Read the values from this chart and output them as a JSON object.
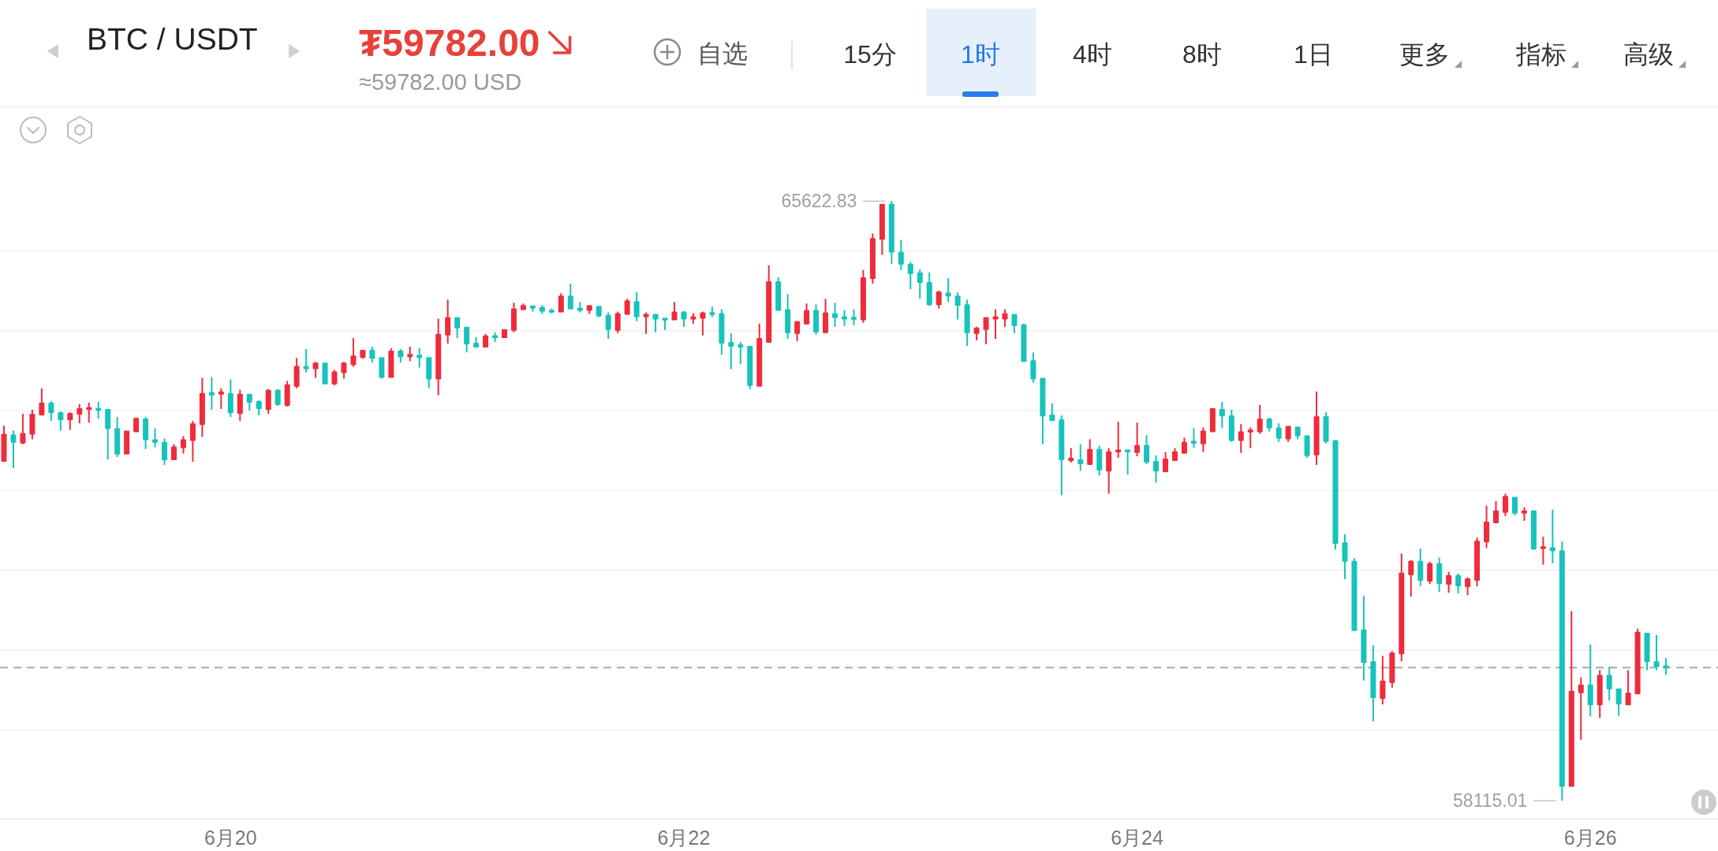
{
  "chart_data": {
    "type": "candlestick",
    "title": "BTC / USDT",
    "categories": [
      null,
      null,
      null,
      null,
      null,
      null,
      null,
      null,
      null,
      null,
      null,
      null,
      null,
      null,
      null,
      null,
      null,
      null,
      null,
      null,
      null,
      null,
      null,
      null,
      "6月20",
      null,
      null,
      null,
      null,
      null,
      null,
      null,
      null,
      null,
      null,
      null,
      null,
      null,
      null,
      null,
      null,
      null,
      null,
      null,
      null,
      null,
      null,
      null,
      null,
      null,
      null,
      null,
      null,
      null,
      null,
      null,
      null,
      null,
      null,
      null,
      null,
      null,
      null,
      null,
      null,
      null,
      null,
      null,
      null,
      null,
      null,
      null,
      "6月22",
      null,
      null,
      null,
      null,
      null,
      null,
      null,
      null,
      null,
      null,
      null,
      null,
      null,
      null,
      null,
      null,
      null,
      null,
      null,
      null,
      null,
      null,
      null,
      null,
      null,
      null,
      null,
      null,
      null,
      null,
      null,
      null,
      null,
      null,
      null,
      null,
      null,
      null,
      null,
      null,
      null,
      null,
      null,
      null,
      null,
      null,
      null,
      "6月24",
      null,
      null,
      null,
      null,
      null,
      null,
      null,
      null,
      null,
      null,
      null,
      null,
      null,
      null,
      null,
      null,
      null,
      null,
      null,
      null,
      null,
      null,
      null,
      null,
      null,
      null,
      null,
      null,
      null,
      null,
      null,
      null,
      null,
      null,
      null,
      null,
      null,
      null,
      null,
      null,
      null,
      null,
      null,
      null,
      null,
      null,
      null,
      "6月26",
      null,
      null,
      null,
      null,
      null,
      null,
      null,
      null
    ],
    "ohlc": [
      [
        62370,
        62810,
        62360,
        62700
      ],
      [
        62690,
        62750,
        62280,
        62610
      ],
      [
        62600,
        62960,
        62580,
        62710
      ],
      [
        62710,
        63010,
        62640,
        62950
      ],
      [
        62950,
        63280,
        62940,
        63090
      ],
      [
        63090,
        63120,
        62870,
        62980
      ],
      [
        62970,
        62990,
        62750,
        62890
      ],
      [
        62890,
        62980,
        62760,
        62960
      ],
      [
        62960,
        63080,
        62840,
        63020
      ],
      [
        63020,
        63100,
        62850,
        63030
      ],
      [
        63020,
        63110,
        62900,
        63010
      ],
      [
        63010,
        63020,
        62390,
        62780
      ],
      [
        62770,
        62920,
        62420,
        62460
      ],
      [
        62460,
        62750,
        62450,
        62740
      ],
      [
        62740,
        62910,
        62730,
        62900
      ],
      [
        62890,
        62920,
        62520,
        62640
      ],
      [
        62630,
        62780,
        62540,
        62610
      ],
      [
        62600,
        62650,
        62320,
        62390
      ],
      [
        62390,
        62580,
        62380,
        62540
      ],
      [
        62540,
        62680,
        62460,
        62630
      ],
      [
        62630,
        62870,
        62360,
        62830
      ],
      [
        62830,
        63410,
        62670,
        63210
      ],
      [
        63220,
        63420,
        63010,
        63200
      ],
      [
        63210,
        63280,
        63020,
        63230
      ],
      [
        63210,
        63390,
        62920,
        62980
      ],
      [
        62970,
        63260,
        62870,
        63200
      ],
      [
        63200,
        63210,
        63000,
        63110
      ],
      [
        63110,
        63130,
        62940,
        63030
      ],
      [
        63020,
        63270,
        62960,
        63250
      ],
      [
        63250,
        63270,
        63060,
        63080
      ],
      [
        63070,
        63370,
        63050,
        63320
      ],
      [
        63310,
        63660,
        63280,
        63550
      ],
      [
        63550,
        63770,
        63480,
        63530
      ],
      [
        63530,
        63610,
        63410,
        63590
      ],
      [
        63590,
        63590,
        63340,
        63340
      ],
      [
        63340,
        63510,
        63320,
        63480
      ],
      [
        63480,
        63610,
        63400,
        63590
      ],
      [
        63580,
        63910,
        63550,
        63680
      ],
      [
        63670,
        63760,
        63650,
        63750
      ],
      [
        63750,
        63800,
        63600,
        63660
      ],
      [
        63660,
        63670,
        63400,
        63420
      ],
      [
        63420,
        63780,
        63410,
        63740
      ],
      [
        63740,
        63770,
        63600,
        63680
      ],
      [
        63680,
        63800,
        63620,
        63700
      ],
      [
        63690,
        63780,
        63540,
        63670
      ],
      [
        63660,
        63660,
        63280,
        63400
      ],
      [
        63400,
        64150,
        63190,
        63950
      ],
      [
        63950,
        64390,
        63840,
        64160
      ],
      [
        64160,
        64170,
        63910,
        64040
      ],
      [
        64040,
        64040,
        63730,
        63840
      ],
      [
        63840,
        63920,
        63790,
        63800
      ],
      [
        63800,
        63960,
        63790,
        63930
      ],
      [
        63930,
        63980,
        63860,
        63920
      ],
      [
        63920,
        64020,
        63920,
        64010
      ],
      [
        64010,
        64350,
        63980,
        64270
      ],
      [
        64270,
        64340,
        64260,
        64310
      ],
      [
        64300,
        64320,
        64240,
        64290
      ],
      [
        64290,
        64320,
        64210,
        64250
      ],
      [
        64250,
        64280,
        64220,
        64240
      ],
      [
        64240,
        64470,
        64240,
        64430
      ],
      [
        64430,
        64590,
        64270,
        64280
      ],
      [
        64280,
        64360,
        64230,
        64260
      ],
      [
        64260,
        64320,
        64210,
        64310
      ],
      [
        64300,
        64300,
        64170,
        64190
      ],
      [
        64190,
        64230,
        63900,
        64020
      ],
      [
        64010,
        64240,
        63970,
        64210
      ],
      [
        64210,
        64400,
        64200,
        64370
      ],
      [
        64360,
        64480,
        64120,
        64180
      ],
      [
        64180,
        64230,
        63960,
        64200
      ],
      [
        64200,
        64200,
        63980,
        64150
      ],
      [
        64150,
        64160,
        64010,
        64140
      ],
      [
        64140,
        64360,
        64130,
        64230
      ],
      [
        64230,
        64250,
        64050,
        64150
      ],
      [
        64150,
        64220,
        64090,
        64170
      ],
      [
        64160,
        64240,
        63940,
        64220
      ],
      [
        64220,
        64300,
        64170,
        64210
      ],
      [
        64210,
        64270,
        63700,
        63850
      ],
      [
        63850,
        63970,
        63520,
        63810
      ],
      [
        63820,
        63860,
        63580,
        63800
      ],
      [
        63800,
        63800,
        63270,
        63320
      ],
      [
        63310,
        64090,
        63310,
        63900
      ],
      [
        63860,
        64820,
        63860,
        64610
      ],
      [
        64610,
        64670,
        64250,
        64260
      ],
      [
        64260,
        64460,
        63900,
        63980
      ],
      [
        63970,
        64110,
        63870,
        64110
      ],
      [
        64090,
        64340,
        64090,
        64250
      ],
      [
        64250,
        64330,
        63950,
        63990
      ],
      [
        63980,
        64400,
        63970,
        64220
      ],
      [
        64210,
        64350,
        64050,
        64170
      ],
      [
        64170,
        64260,
        64060,
        64150
      ],
      [
        64160,
        64270,
        64070,
        64150
      ],
      [
        64140,
        64760,
        64100,
        64660
      ],
      [
        64660,
        65220,
        64590,
        65150
      ],
      [
        65150,
        65590,
        64950,
        65580
      ],
      [
        65580,
        65622.83,
        64840,
        64990
      ],
      [
        64980,
        65140,
        64760,
        64840
      ],
      [
        64830,
        64860,
        64520,
        64720
      ],
      [
        64720,
        64770,
        64400,
        64610
      ],
      [
        64600,
        64730,
        64310,
        64330
      ],
      [
        64330,
        64500,
        64280,
        64480
      ],
      [
        64470,
        64660,
        64360,
        64440
      ],
      [
        64430,
        64480,
        64140,
        64320
      ],
      [
        64320,
        64390,
        63810,
        63980
      ],
      [
        63970,
        64050,
        63880,
        64030
      ],
      [
        64020,
        64170,
        63830,
        64160
      ],
      [
        64150,
        64270,
        63900,
        64170
      ],
      [
        64150,
        64270,
        64050,
        64210
      ],
      [
        64200,
        64210,
        63970,
        64070
      ],
      [
        64070,
        64090,
        63620,
        63620
      ],
      [
        63620,
        63730,
        63350,
        63400
      ],
      [
        63400,
        63400,
        62580,
        62940
      ],
      [
        62940,
        63090,
        62880,
        62880
      ],
      [
        62880,
        62940,
        61940,
        62390
      ],
      [
        62380,
        62530,
        62350,
        62400
      ],
      [
        62380,
        62580,
        62250,
        62340
      ],
      [
        62330,
        62640,
        62330,
        62510
      ],
      [
        62510,
        62560,
        62190,
        62260
      ],
      [
        62250,
        62530,
        61960,
        62480
      ],
      [
        62490,
        62860,
        62410,
        62500
      ],
      [
        62500,
        62510,
        62200,
        62490
      ],
      [
        62480,
        62850,
        62430,
        62560
      ],
      [
        62560,
        62690,
        62330,
        62360
      ],
      [
        62360,
        62440,
        62100,
        62250
      ],
      [
        62240,
        62480,
        62240,
        62390
      ],
      [
        62380,
        62530,
        62380,
        62480
      ],
      [
        62470,
        62660,
        62470,
        62600
      ],
      [
        62610,
        62780,
        62530,
        62600
      ],
      [
        62590,
        62790,
        62480,
        62740
      ],
      [
        62740,
        63020,
        62740,
        63020
      ],
      [
        63010,
        63110,
        62780,
        62940
      ],
      [
        62930,
        63010,
        62610,
        62630
      ],
      [
        62630,
        62830,
        62470,
        62730
      ],
      [
        62740,
        62790,
        62530,
        62750
      ],
      [
        62740,
        63070,
        62710,
        62890
      ],
      [
        62890,
        62910,
        62740,
        62790
      ],
      [
        62780,
        62840,
        62610,
        62660
      ],
      [
        62650,
        62800,
        62610,
        62800
      ],
      [
        62790,
        62800,
        62640,
        62690
      ],
      [
        62680,
        62690,
        62410,
        62440
      ],
      [
        62450,
        63240,
        62320,
        62920
      ],
      [
        62920,
        62980,
        62590,
        62620
      ],
      [
        62620,
        62630,
        61260,
        61340
      ],
      [
        61340,
        61450,
        60890,
        61120
      ],
      [
        61110,
        61150,
        60250,
        60250
      ],
      [
        60250,
        60680,
        59620,
        59850
      ],
      [
        59850,
        60060,
        59110,
        59410
      ],
      [
        59400,
        59930,
        59320,
        59610
      ],
      [
        59600,
        59990,
        59530,
        59960
      ],
      [
        59960,
        61210,
        59860,
        60960
      ],
      [
        60950,
        61130,
        60670,
        61110
      ],
      [
        61110,
        61270,
        60800,
        60880
      ],
      [
        60870,
        61110,
        60830,
        61080
      ],
      [
        61080,
        61160,
        60730,
        60840
      ],
      [
        60830,
        60980,
        60720,
        60930
      ],
      [
        60930,
        60960,
        60710,
        60810
      ],
      [
        60800,
        60910,
        60690,
        60890
      ],
      [
        60880,
        61410,
        60800,
        61360
      ],
      [
        61360,
        61810,
        61280,
        61600
      ],
      [
        61600,
        61870,
        61600,
        61740
      ],
      [
        61730,
        61960,
        61680,
        61920
      ],
      [
        61910,
        61920,
        61690,
        61720
      ],
      [
        61720,
        61790,
        61620,
        61740
      ],
      [
        61740,
        61750,
        61260,
        61270
      ],
      [
        61280,
        61420,
        61070,
        61290
      ],
      [
        61280,
        61760,
        61090,
        61250
      ],
      [
        61240,
        61360,
        58115.01,
        58300
      ],
      [
        58300,
        60490,
        58300,
        59480
      ],
      [
        59470,
        59660,
        58880,
        59560
      ],
      [
        59560,
        60070,
        59170,
        59320
      ],
      [
        59320,
        59750,
        59150,
        59680
      ],
      [
        59680,
        59790,
        59370,
        59520
      ],
      [
        59510,
        59510,
        59180,
        59330
      ],
      [
        59320,
        59750,
        59320,
        59460
      ],
      [
        59460,
        60270,
        59460,
        60220
      ],
      [
        60210,
        60210,
        59750,
        59860
      ],
      [
        59850,
        60190,
        59750,
        59800
      ],
      [
        59800,
        59900,
        59690,
        59782
      ]
    ],
    "colors": [
      "#ee2c3c",
      "#17c3bc",
      "#ee2c3c",
      "#ee2c3c",
      "#ee2c3c",
      "#17c3bc",
      "#17c3bc",
      "#ee2c3c",
      "#ee2c3c",
      "#ee2c3c",
      "#17c3bc",
      "#17c3bc",
      "#17c3bc",
      "#ee2c3c",
      "#ee2c3c",
      "#17c3bc",
      "#17c3bc",
      "#17c3bc",
      "#ee2c3c",
      "#ee2c3c",
      "#ee2c3c",
      "#ee2c3c",
      "#17c3bc",
      "#ee2c3c",
      "#17c3bc",
      "#ee2c3c",
      "#17c3bc",
      "#17c3bc",
      "#ee2c3c",
      "#17c3bc",
      "#ee2c3c",
      "#ee2c3c",
      "#17c3bc",
      "#ee2c3c",
      "#17c3bc",
      "#ee2c3c",
      "#ee2c3c",
      "#ee2c3c",
      "#ee2c3c",
      "#17c3bc",
      "#17c3bc",
      "#ee2c3c",
      "#17c3bc",
      "#ee2c3c",
      "#17c3bc",
      "#17c3bc",
      "#ee2c3c",
      "#ee2c3c",
      "#17c3bc",
      "#17c3bc",
      "#17c3bc",
      "#ee2c3c",
      "#17c3bc",
      "#ee2c3c",
      "#ee2c3c",
      "#ee2c3c",
      "#17c3bc",
      "#17c3bc",
      "#17c3bc",
      "#ee2c3c",
      "#17c3bc",
      "#17c3bc",
      "#ee2c3c",
      "#17c3bc",
      "#17c3bc",
      "#ee2c3c",
      "#ee2c3c",
      "#17c3bc",
      "#ee2c3c",
      "#17c3bc",
      "#17c3bc",
      "#ee2c3c",
      "#17c3bc",
      "#ee2c3c",
      "#ee2c3c",
      "#17c3bc",
      "#17c3bc",
      "#17c3bc",
      "#17c3bc",
      "#17c3bc",
      "#ee2c3c",
      "#ee2c3c",
      "#17c3bc",
      "#17c3bc",
      "#ee2c3c",
      "#ee2c3c",
      "#17c3bc",
      "#ee2c3c",
      "#17c3bc",
      "#17c3bc",
      "#17c3bc",
      "#ee2c3c",
      "#ee2c3c",
      "#ee2c3c",
      "#17c3bc",
      "#17c3bc",
      "#17c3bc",
      "#17c3bc",
      "#17c3bc",
      "#ee2c3c",
      "#17c3bc",
      "#17c3bc",
      "#17c3bc",
      "#ee2c3c",
      "#ee2c3c",
      "#ee2c3c",
      "#ee2c3c",
      "#17c3bc",
      "#17c3bc",
      "#17c3bc",
      "#17c3bc",
      "#17c3bc",
      "#17c3bc",
      "#ee2c3c",
      "#17c3bc",
      "#ee2c3c",
      "#17c3bc",
      "#ee2c3c",
      "#ee2c3c",
      "#17c3bc",
      "#ee2c3c",
      "#17c3bc",
      "#17c3bc",
      "#ee2c3c",
      "#ee2c3c",
      "#ee2c3c",
      "#17c3bc",
      "#ee2c3c",
      "#ee2c3c",
      "#17c3bc",
      "#17c3bc",
      "#ee2c3c",
      "#ee2c3c",
      "#ee2c3c",
      "#17c3bc",
      "#17c3bc",
      "#ee2c3c",
      "#17c3bc",
      "#17c3bc",
      "#ee2c3c",
      "#17c3bc",
      "#17c3bc",
      "#17c3bc",
      "#17c3bc",
      "#17c3bc",
      "#17c3bc",
      "#ee2c3c",
      "#ee2c3c",
      "#ee2c3c",
      "#ee2c3c",
      "#17c3bc",
      "#ee2c3c",
      "#17c3bc",
      "#ee2c3c",
      "#17c3bc",
      "#ee2c3c",
      "#ee2c3c",
      "#ee2c3c",
      "#ee2c3c",
      "#ee2c3c",
      "#17c3bc",
      "#ee2c3c",
      "#17c3bc",
      "#ee2c3c",
      "#17c3bc",
      "#17c3bc",
      "#ee2c3c",
      "#ee2c3c",
      "#17c3bc",
      "#ee2c3c",
      "#17c3bc",
      "#17c3bc",
      "#ee2c3c",
      "#ee2c3c",
      "#17c3bc",
      "#17c3bc",
      "#17c3bc"
    ],
    "ylim": [
      57890,
      66800
    ],
    "yticks": [
      {
        "value": 59000,
        "label": null
      },
      {
        "value": 60000,
        "label": null
      },
      {
        "value": 61000,
        "label": null
      },
      {
        "value": 62000,
        "label": null
      },
      {
        "value": 63000,
        "label": null
      },
      {
        "value": 64000,
        "label": null
      },
      {
        "value": 65000,
        "label": null
      }
    ],
    "grid": "y",
    "tick_labels": "x",
    "ref_lines": [
      {
        "axis": "y",
        "value": 59782,
        "color": "#aaaaaa",
        "line_style": "dashed"
      }
    ],
    "annotations": [
      "65622.83",
      "58115.01",
      "₮59782.00",
      "≈59782.00 USD",
      "自选",
      "15分",
      "1时",
      "4时",
      "8时",
      "1日",
      "更多",
      "指标",
      "高级"
    ]
  }
}
